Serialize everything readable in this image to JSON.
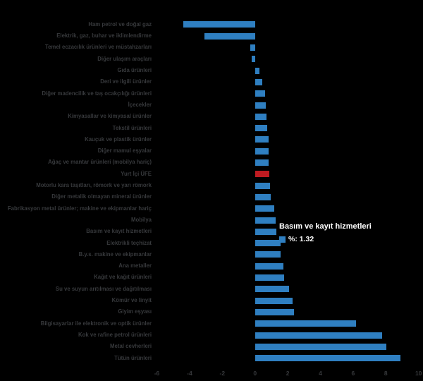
{
  "chart_data": {
    "type": "bar",
    "orientation": "horizontal",
    "title": "",
    "xlabel": "",
    "ylabel": "",
    "unit": "%",
    "categories": [
      "Ham petrol ve doğal gaz",
      "Elektrik, gaz, buhar ve iklimlendirme",
      "Temel eczacılık ürünleri ve müstahzarları",
      "Diğer ulaşım araçları",
      "Gıda ürünleri",
      "Deri ve ilgili ürünler",
      "Diğer madencilik ve taş ocakçılığı ürünleri",
      "İçecekler",
      "Kimyasallar ve kimyasal ürünler",
      "Tekstil ürünleri",
      "Kauçuk ve plastik ürünler",
      "Diğer mamul eşyalar",
      "Ağaç ve mantar ürünleri (mobilya hariç)",
      "Yurt İçi ÜFE",
      "Motorlu kara taşıtları, römork ve yarı römork",
      "Diğer metalik olmayan mineral ürünler",
      "Fabrikasyon metal ürünler; makine ve ekipmanlar hariç",
      "Mobilya",
      "Basım ve kayıt hizmetleri",
      "Elektrikli teçhizat",
      "B.y.s. makine ve ekipmanlar",
      "Ana metaller",
      "Kağıt ve kağıt ürünleri",
      "Su ve suyun arıtılması ve dağıtılması",
      "Kömür ve linyit",
      "Giyim eşyası",
      "Bilgisayarlar ile elektronik ve optik ürünler",
      "Kok ve rafine petrol ürünleri",
      "Metal cevherleri",
      "Tütün ürünleri"
    ],
    "values": [
      -4.38,
      -3.09,
      -0.29,
      -0.2,
      0.26,
      0.43,
      0.6,
      0.65,
      0.69,
      0.75,
      0.82,
      0.84,
      0.85,
      0.86,
      0.93,
      0.98,
      1.18,
      1.25,
      1.32,
      1.55,
      1.58,
      1.72,
      1.77,
      2.08,
      2.3,
      2.37,
      6.18,
      7.76,
      8.05,
      8.91
    ],
    "bar_color": "#2f7fc1",
    "highlight": {
      "index": 13,
      "label": "Yurt İçi ÜFE",
      "color": "#bf1b21"
    },
    "x_axis": {
      "min": -6,
      "max": 10,
      "ticks": [
        -6,
        -4,
        -2,
        0,
        2,
        4,
        6,
        8,
        10
      ]
    },
    "grid": false,
    "legend": false,
    "background": "#000000"
  },
  "tooltip": {
    "title": "Basım ve kayıt hizmetleri",
    "text": "%: 1.32",
    "marker_color": "#2f7fc1"
  },
  "colors": {
    "label_text": "#37393c",
    "tick_text": "#37393c",
    "tooltip_text": "#ffffff"
  }
}
